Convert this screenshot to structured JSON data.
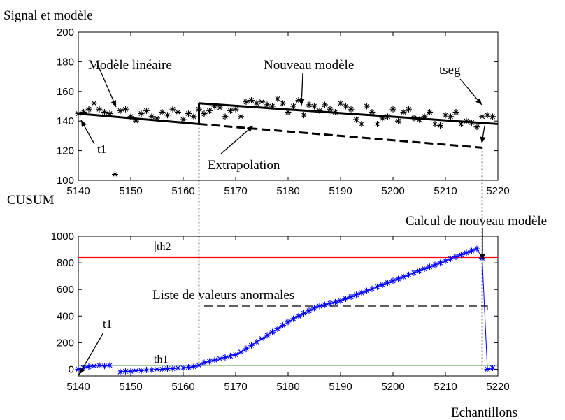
{
  "chart_data": [
    {
      "type": "scatter",
      "title": "Signal et modèle",
      "xlim": [
        5140,
        5220
      ],
      "ylim": [
        100,
        200
      ],
      "xticks": [
        5140,
        5150,
        5160,
        5170,
        5180,
        5190,
        5200,
        5210,
        5220
      ],
      "yticks": [
        100,
        120,
        140,
        160,
        180,
        200
      ],
      "grid": false,
      "signal": {
        "x": [
          5140,
          5141,
          5142,
          5143,
          5144,
          5145,
          5146,
          5147,
          5148,
          5149,
          5150,
          5151,
          5152,
          5153,
          5154,
          5155,
          5156,
          5157,
          5158,
          5159,
          5160,
          5161,
          5162,
          5163,
          5164,
          5165,
          5166,
          5167,
          5168,
          5169,
          5170,
          5171,
          5172,
          5173,
          5174,
          5175,
          5176,
          5177,
          5178,
          5179,
          5180,
          5181,
          5182,
          5183,
          5184,
          5185,
          5186,
          5187,
          5188,
          5189,
          5190,
          5191,
          5192,
          5193,
          5194,
          5195,
          5196,
          5197,
          5198,
          5199,
          5200,
          5201,
          5202,
          5203,
          5204,
          5205,
          5206,
          5207,
          5208,
          5209,
          5210,
          5211,
          5212,
          5213,
          5214,
          5215,
          5216,
          5217,
          5218,
          5219
        ],
        "y": [
          145,
          146,
          148,
          152,
          148,
          146,
          145,
          104,
          147,
          148,
          143,
          140,
          145,
          147,
          143,
          142,
          146,
          144,
          148,
          146,
          141,
          145,
          143,
          148,
          145,
          147,
          150,
          149,
          143,
          147,
          148,
          143,
          153,
          154,
          152,
          153,
          151,
          150,
          155,
          152,
          146,
          150,
          154,
          144,
          151,
          150,
          147,
          151,
          148,
          146,
          152,
          150,
          148,
          141,
          138,
          150,
          146,
          138,
          142,
          143,
          148,
          140,
          146,
          148,
          142,
          141,
          143,
          146,
          138,
          137,
          144,
          143,
          146,
          138,
          140,
          139,
          136,
          143,
          144,
          143
        ]
      },
      "models": [
        {
          "x": [
            5140,
            5163
          ],
          "y": [
            145,
            138
          ]
        },
        {
          "x": [
            5163,
            5163
          ],
          "y": [
            138,
            152
          ]
        },
        {
          "x": [
            5163,
            5220
          ],
          "y": [
            152,
            138
          ]
        }
      ],
      "extrapolation": {
        "x": [
          5163,
          5217
        ],
        "y": [
          138,
          122
        ]
      },
      "annotations": {
        "modele_lineaire": "Modèle linéaire",
        "nouveau_modele": "Nouveau modèle",
        "tseg": "tseg",
        "t1": "t1",
        "extrapolation": "Extrapolation"
      }
    },
    {
      "type": "line",
      "ylabel": "CUSUM",
      "xlabel": "Echantillons",
      "xlim": [
        5140,
        5220
      ],
      "ylim": [
        -50,
        1000
      ],
      "xticks": [
        5140,
        5150,
        5160,
        5170,
        5180,
        5190,
        5200,
        5210,
        5220
      ],
      "yticks": [
        0,
        200,
        400,
        600,
        800,
        1000
      ],
      "grid": false,
      "thresholds": [
        {
          "name": "th2",
          "value": 840,
          "color": "#ff0000"
        },
        {
          "name": "th1",
          "value": 30,
          "color": "#008000"
        }
      ],
      "cusum": {
        "x": [
          5140,
          5141,
          5142,
          5143,
          5144,
          5145,
          5146,
          5147,
          5148,
          5149,
          5150,
          5151,
          5152,
          5153,
          5154,
          5155,
          5156,
          5157,
          5158,
          5159,
          5160,
          5161,
          5162,
          5163,
          5164,
          5165,
          5166,
          5167,
          5168,
          5169,
          5170,
          5171,
          5172,
          5173,
          5174,
          5175,
          5176,
          5177,
          5178,
          5179,
          5180,
          5181,
          5182,
          5183,
          5184,
          5185,
          5186,
          5187,
          5188,
          5189,
          5190,
          5191,
          5192,
          5193,
          5194,
          5195,
          5196,
          5197,
          5198,
          5199,
          5200,
          5201,
          5202,
          5203,
          5204,
          5205,
          5206,
          5207,
          5208,
          5209,
          5210,
          5211,
          5212,
          5213,
          5214,
          5215,
          5216,
          5217,
          5218,
          5219
        ],
        "y": [
          0,
          10,
          20,
          25,
          30,
          25,
          30,
          null,
          -20,
          -15,
          -15,
          -10,
          -10,
          -5,
          -5,
          0,
          0,
          5,
          5,
          10,
          10,
          15,
          20,
          30,
          50,
          60,
          70,
          80,
          90,
          100,
          110,
          130,
          155,
          180,
          205,
          230,
          255,
          280,
          305,
          330,
          355,
          380,
          400,
          420,
          440,
          460,
          475,
          485,
          495,
          505,
          515,
          530,
          545,
          560,
          575,
          590,
          605,
          620,
          635,
          650,
          665,
          680,
          695,
          710,
          725,
          740,
          755,
          770,
          785,
          800,
          815,
          830,
          845,
          860,
          875,
          890,
          905,
          835,
          0,
          10
        ],
        "color": "#0000ff"
      },
      "anomaly_list_line": {
        "x": [
          5164,
          5218
        ],
        "y": [
          475,
          475
        ]
      },
      "annotations": {
        "th2": "th2",
        "th1": "th1",
        "t1": "t1",
        "liste": "Liste de valeurs anormales",
        "calcul": "Calcul de nouveau modèle"
      }
    }
  ]
}
